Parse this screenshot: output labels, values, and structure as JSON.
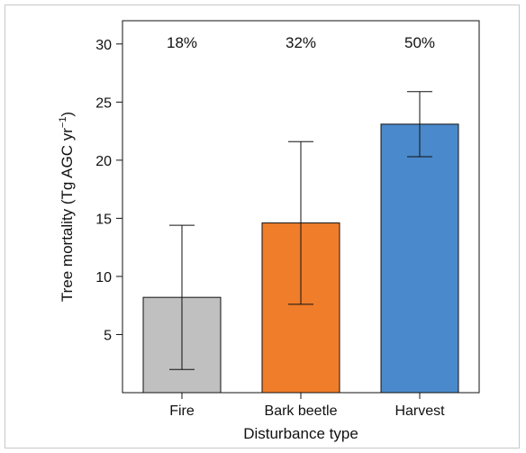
{
  "chart_data": {
    "type": "bar",
    "xlabel": "Disturbance type",
    "ylabel": "Tree mortality (Tg AGC yr",
    "ylabel_superscript": "−1",
    "ylabel_close": ")",
    "ylim": [
      0,
      32
    ],
    "yticks": [
      5,
      10,
      15,
      20,
      25,
      30
    ],
    "categories": [
      "Fire",
      "Bark beetle",
      "Harvest"
    ],
    "values": [
      8.2,
      14.6,
      23.1
    ],
    "error_low": [
      2.0,
      7.6,
      20.3
    ],
    "error_high": [
      14.4,
      21.6,
      25.9
    ],
    "percent_labels": [
      "18%",
      "32%",
      "50%"
    ],
    "colors": [
      "#c0c0c0",
      "#f07d2a",
      "#4a89cb"
    ],
    "grid": false,
    "legend": "none"
  }
}
